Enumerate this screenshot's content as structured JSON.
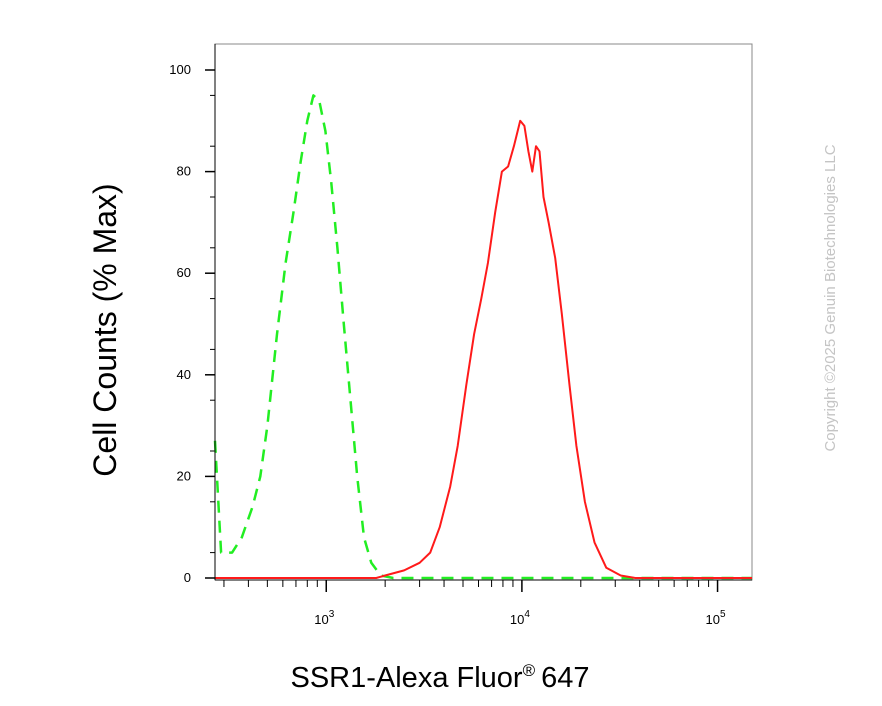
{
  "chart_data": {
    "type": "line",
    "title": "",
    "xlabel": "SSR1-Alexa Fluor",
    "xlabel_superscript": "®",
    "xlabel_suffix": "647",
    "ylabel": "Cell Counts (% Max)",
    "x_scale": "log",
    "xlim": [
      270,
      150000
    ],
    "ylim": [
      0,
      105
    ],
    "y_ticks": [
      0,
      20,
      40,
      60,
      80,
      100
    ],
    "x_ticks": [
      {
        "value": 1000,
        "base": "10",
        "exp": "3"
      },
      {
        "value": 10000,
        "base": "10",
        "exp": "4"
      },
      {
        "value": 100000,
        "base": "10",
        "exp": "5"
      }
    ],
    "grid": false,
    "legend": "none",
    "series": [
      {
        "style": "dashed",
        "color": "#22ee22",
        "points": [
          [
            270,
            27
          ],
          [
            290,
            5
          ],
          [
            330,
            5
          ],
          [
            370,
            8
          ],
          [
            420,
            14
          ],
          [
            460,
            20
          ],
          [
            500,
            30
          ],
          [
            560,
            48
          ],
          [
            620,
            62
          ],
          [
            680,
            72
          ],
          [
            740,
            82
          ],
          [
            800,
            90
          ],
          [
            860,
            95
          ],
          [
            920,
            94
          ],
          [
            990,
            88
          ],
          [
            1060,
            78
          ],
          [
            1140,
            65
          ],
          [
            1230,
            50
          ],
          [
            1330,
            35
          ],
          [
            1440,
            20
          ],
          [
            1560,
            8
          ],
          [
            1700,
            3
          ],
          [
            1900,
            0.5
          ],
          [
            2200,
            0
          ],
          [
            150000,
            0
          ]
        ]
      },
      {
        "style": "solid",
        "color": "#ff1a1a",
        "points": [
          [
            270,
            0
          ],
          [
            1800,
            0
          ],
          [
            2000,
            0.5
          ],
          [
            2500,
            1.5
          ],
          [
            3000,
            3
          ],
          [
            3400,
            5
          ],
          [
            3800,
            10
          ],
          [
            4300,
            18
          ],
          [
            4700,
            26
          ],
          [
            5200,
            38
          ],
          [
            5700,
            48
          ],
          [
            6200,
            55
          ],
          [
            6700,
            62
          ],
          [
            7300,
            72
          ],
          [
            7900,
            80
          ],
          [
            8500,
            81
          ],
          [
            9100,
            85
          ],
          [
            9800,
            90
          ],
          [
            10300,
            89
          ],
          [
            10800,
            84
          ],
          [
            11300,
            80
          ],
          [
            11800,
            85
          ],
          [
            12300,
            84
          ],
          [
            12900,
            75
          ],
          [
            13700,
            70
          ],
          [
            14800,
            63
          ],
          [
            16000,
            52
          ],
          [
            17500,
            38
          ],
          [
            19000,
            26
          ],
          [
            21000,
            15
          ],
          [
            23500,
            7
          ],
          [
            27000,
            2
          ],
          [
            32000,
            0.5
          ],
          [
            38000,
            0
          ],
          [
            150000,
            0
          ]
        ]
      }
    ]
  },
  "copyright": "Copyright ©2025 Genuin Biotechnologies LLC"
}
